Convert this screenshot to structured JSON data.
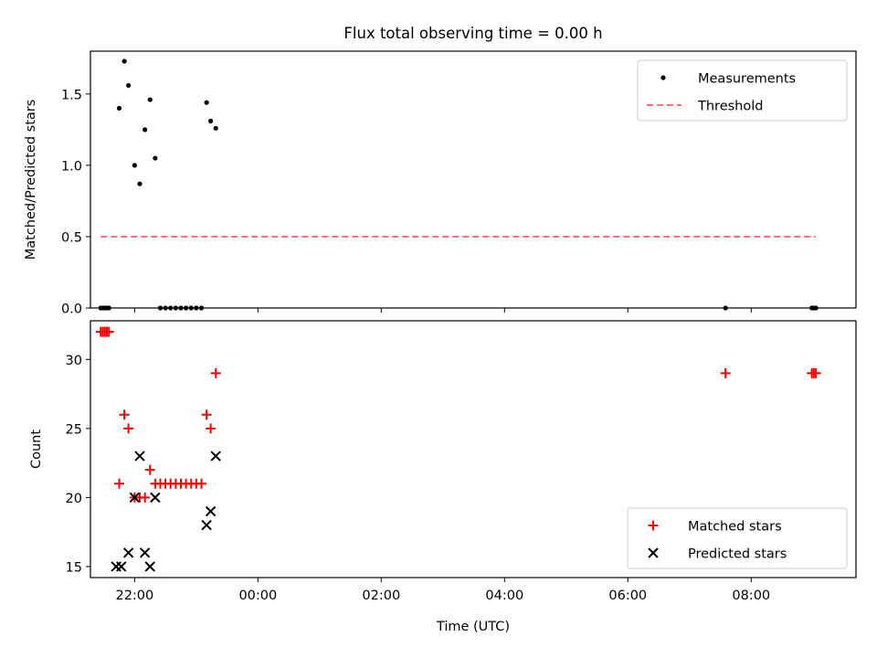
{
  "title": "Flux total observing time = 0.00 h",
  "chart_data": [
    {
      "type": "scatter",
      "panel": "top",
      "ylabel": "Matched/Predicted stars",
      "xlabel": "",
      "xlim": [
        "21:17",
        "09:42"
      ],
      "ylim": [
        0.0,
        1.8
      ],
      "yticks": [
        0.0,
        0.5,
        1.0,
        1.5
      ],
      "ytick_labels": [
        "0.0",
        "0.5",
        "1.0",
        "1.5"
      ],
      "legend_position": "upper right",
      "legend": [
        "Measurements",
        "Threshold"
      ],
      "series": [
        {
          "name": "Measurements",
          "color": "#000000",
          "marker": "dot",
          "points": [
            {
              "x": "21:27",
              "y": 0.0
            },
            {
              "x": "21:29",
              "y": 0.0
            },
            {
              "x": "21:31",
              "y": 0.0
            },
            {
              "x": "21:33",
              "y": 0.0
            },
            {
              "x": "21:35",
              "y": 0.0
            },
            {
              "x": "21:45",
              "y": 1.4
            },
            {
              "x": "21:50",
              "y": 1.73
            },
            {
              "x": "21:54",
              "y": 1.56
            },
            {
              "x": "22:00",
              "y": 1.0
            },
            {
              "x": "22:05",
              "y": 0.87
            },
            {
              "x": "22:10",
              "y": 1.25
            },
            {
              "x": "22:15",
              "y": 1.46
            },
            {
              "x": "22:20",
              "y": 1.05
            },
            {
              "x": "22:25",
              "y": 0.0
            },
            {
              "x": "22:30",
              "y": 0.0
            },
            {
              "x": "22:35",
              "y": 0.0
            },
            {
              "x": "22:40",
              "y": 0.0
            },
            {
              "x": "22:45",
              "y": 0.0
            },
            {
              "x": "22:50",
              "y": 0.0
            },
            {
              "x": "22:55",
              "y": 0.0
            },
            {
              "x": "23:00",
              "y": 0.0
            },
            {
              "x": "23:05",
              "y": 0.0
            },
            {
              "x": "23:10",
              "y": 1.44
            },
            {
              "x": "23:14",
              "y": 1.31
            },
            {
              "x": "23:19",
              "y": 1.26
            },
            {
              "x": "07:35",
              "y": 0.0
            },
            {
              "x": "08:59",
              "y": 0.0
            },
            {
              "x": "09:01",
              "y": 0.0
            },
            {
              "x": "09:03",
              "y": 0.0
            }
          ]
        },
        {
          "name": "Threshold",
          "color": "#ff7070",
          "style": "dashed",
          "points": [
            {
              "x": "21:27",
              "y": 0.5
            },
            {
              "x": "09:03",
              "y": 0.5
            }
          ]
        }
      ]
    },
    {
      "type": "scatter",
      "panel": "bottom",
      "ylabel": "Count",
      "xlabel": "Time (UTC)",
      "xlim": [
        "21:17",
        "09:42"
      ],
      "ylim": [
        14.2,
        32.8
      ],
      "yticks": [
        15,
        20,
        25,
        30
      ],
      "ytick_labels": [
        "15",
        "20",
        "25",
        "30"
      ],
      "xticks": [
        "22:00",
        "00:00",
        "02:00",
        "04:00",
        "06:00",
        "08:00"
      ],
      "legend_position": "lower right",
      "legend": [
        "Matched stars",
        "Predicted stars"
      ],
      "series": [
        {
          "name": "Matched stars",
          "color": "#ff0000",
          "marker": "plus",
          "points": [
            {
              "x": "21:27",
              "y": 32
            },
            {
              "x": "21:29",
              "y": 32
            },
            {
              "x": "21:31",
              "y": 32
            },
            {
              "x": "21:33",
              "y": 32
            },
            {
              "x": "21:35",
              "y": 32
            },
            {
              "x": "21:45",
              "y": 21
            },
            {
              "x": "21:50",
              "y": 26
            },
            {
              "x": "21:54",
              "y": 25
            },
            {
              "x": "22:00",
              "y": 20
            },
            {
              "x": "22:05",
              "y": 20
            },
            {
              "x": "22:10",
              "y": 20
            },
            {
              "x": "22:15",
              "y": 22
            },
            {
              "x": "22:20",
              "y": 21
            },
            {
              "x": "22:25",
              "y": 21
            },
            {
              "x": "22:30",
              "y": 21
            },
            {
              "x": "22:35",
              "y": 21
            },
            {
              "x": "22:40",
              "y": 21
            },
            {
              "x": "22:45",
              "y": 21
            },
            {
              "x": "22:50",
              "y": 21
            },
            {
              "x": "22:55",
              "y": 21
            },
            {
              "x": "23:00",
              "y": 21
            },
            {
              "x": "23:05",
              "y": 21
            },
            {
              "x": "23:10",
              "y": 26
            },
            {
              "x": "23:14",
              "y": 25
            },
            {
              "x": "23:19",
              "y": 29
            },
            {
              "x": "07:35",
              "y": 29
            },
            {
              "x": "08:59",
              "y": 29
            },
            {
              "x": "09:01",
              "y": 29
            },
            {
              "x": "09:03",
              "y": 29
            }
          ]
        },
        {
          "name": "Predicted stars",
          "color": "#000000",
          "marker": "x",
          "points": [
            {
              "x": "21:42",
              "y": 15
            },
            {
              "x": "21:47",
              "y": 15
            },
            {
              "x": "21:54",
              "y": 16
            },
            {
              "x": "22:00",
              "y": 20
            },
            {
              "x": "22:05",
              "y": 23
            },
            {
              "x": "22:10",
              "y": 16
            },
            {
              "x": "22:15",
              "y": 15
            },
            {
              "x": "22:20",
              "y": 20
            },
            {
              "x": "23:10",
              "y": 18
            },
            {
              "x": "23:14",
              "y": 19
            },
            {
              "x": "23:19",
              "y": 23
            }
          ]
        }
      ]
    }
  ]
}
